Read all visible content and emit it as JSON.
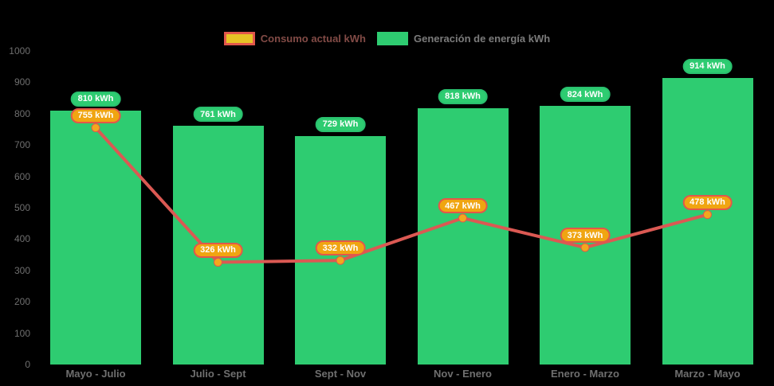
{
  "chart": {
    "background": "#000000",
    "legend": {
      "items": [
        {
          "id": "consumption",
          "label": "Consumo actual kWh",
          "swatch_fill": "#e7c325",
          "swatch_border": "#e2574b",
          "label_color": "#824b46"
        },
        {
          "id": "generation",
          "label": "Generación de energía kWh",
          "swatch_fill": "#2ecc71",
          "swatch_border": "#2ecc71",
          "label_color": "#7b7b7b"
        }
      ]
    },
    "axes": {
      "y_tick_color": "#6f6f6f",
      "x_label_color": "#6f6f6f"
    }
  },
  "chart_data": {
    "type": "bar",
    "title": "",
    "categories": [
      "Mayo - Julio",
      "Julio - Sept",
      "Sept - Nov",
      "Nov - Enero",
      "Enero - Marzo",
      "Marzo - Mayo"
    ],
    "series": [
      {
        "name": "Generación de energía kWh",
        "type": "bar",
        "values": [
          810,
          761,
          729,
          818,
          824,
          914
        ],
        "data_labels": [
          "810 kWh",
          "761 kWh",
          "729 kWh",
          "818 kWh",
          "824 kWh",
          "914 kWh"
        ],
        "bar_color": "#2ecc71",
        "label_bg": "#2ecc71",
        "label_border": "#29c06e"
      },
      {
        "name": "Consumo actual kWh",
        "type": "line",
        "values": [
          755,
          326,
          332,
          467,
          373,
          478
        ],
        "data_labels": [
          "755 kWh",
          "326 kWh",
          "332 kWh",
          "467 kWh",
          "373 kWh",
          "478 kWh"
        ],
        "line_color": "#db5953",
        "point_color": "#f2a81d",
        "label_bg": "#f0a511",
        "label_border": "#e2574b"
      }
    ],
    "ylim": [
      0,
      1000
    ],
    "y_tick_step": 100,
    "y_ticks": [
      "0",
      "100",
      "200",
      "300",
      "400",
      "500",
      "600",
      "700",
      "800",
      "900",
      "1000"
    ],
    "xlabel": "",
    "ylabel": "",
    "grid": false,
    "legend_position": "top",
    "background": "#000000"
  }
}
